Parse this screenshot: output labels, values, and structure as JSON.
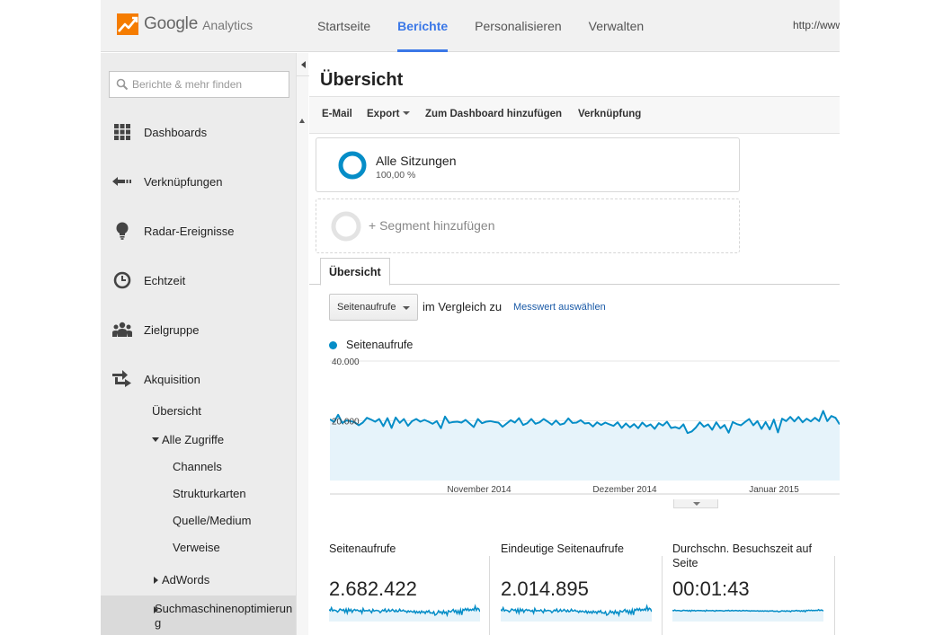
{
  "brand": {
    "google": "Google",
    "analytics": "Analytics"
  },
  "top_nav": [
    {
      "label": "Startseite",
      "active": false
    },
    {
      "label": "Berichte",
      "active": true
    },
    {
      "label": "Personalisieren",
      "active": false
    },
    {
      "label": "Verwalten",
      "active": false
    }
  ],
  "account_url": "http://www",
  "search": {
    "placeholder": "Berichte & mehr finden"
  },
  "sidebar": {
    "items": [
      {
        "label": "Dashboards",
        "icon": "dashboard-grid-icon"
      },
      {
        "label": "Verknüpfungen",
        "icon": "shortcut-arrow-icon"
      },
      {
        "label": "Radar-Ereignisse",
        "icon": "lightbulb-icon"
      },
      {
        "label": "Echtzeit",
        "icon": "clock-icon"
      },
      {
        "label": "Zielgruppe",
        "icon": "audience-people-icon"
      },
      {
        "label": "Akquisition",
        "icon": "acquisition-arrows-icon"
      }
    ],
    "acquisition_sub": {
      "overview": "Übersicht",
      "all_traffic": "Alle Zugriffe",
      "all_traffic_children": [
        "Channels",
        "Strukturkarten",
        "Quelle/Medium",
        "Verweise"
      ],
      "adwords": "AdWords",
      "seo": "Suchmaschinenoptimierung"
    }
  },
  "page": {
    "title": "Übersicht",
    "toolbar": {
      "email": "E-Mail",
      "export": "Export",
      "add_dashboard": "Zum Dashboard hinzufügen",
      "shortcut": "Verknüpfung"
    },
    "segment": {
      "name": "Alle Sitzungen",
      "percent": "100,00 %",
      "add_label": "+ Segment hinzufügen"
    },
    "tab": "Übersicht",
    "metric_select": "Seitenaufrufe",
    "compare_text": "im Vergleich zu",
    "choose_metric": "Messwert auswählen"
  },
  "colors": {
    "accent": "#3b78e7",
    "series": "#058dc7",
    "area": "#e6f3fa",
    "logo_orange": "#f57c00"
  },
  "chart_data": {
    "type": "area",
    "series": [
      {
        "name": "Seitenaufrufe",
        "values": [
          20500,
          19600,
          22000,
          19300,
          20100,
          19900,
          19500,
          18500,
          19400,
          21000,
          20400,
          19700,
          20600,
          18200,
          20900,
          17600,
          21100,
          19300,
          20600,
          18300,
          19900,
          20600,
          19700,
          20300,
          19700,
          19000,
          19900,
          17500,
          21400,
          19300,
          19600,
          19700,
          19400,
          20300,
          19100,
          17900,
          20600,
          19200,
          19700,
          19900,
          19600,
          19400,
          18000,
          19100,
          20200,
          19400,
          20900,
          18600,
          19200,
          20600,
          19000,
          19500,
          20600,
          19700,
          18700,
          20100,
          18700,
          19100,
          20800,
          19300,
          19400,
          20200,
          19100,
          19300,
          18100,
          19500,
          18600,
          19400,
          18800,
          18300,
          19500,
          17600,
          19100,
          17800,
          18900,
          17500,
          19400,
          18100,
          18800,
          17300,
          19200,
          18400,
          19700,
          17600,
          17900,
          17400,
          18800,
          15900,
          16400,
          17700,
          19500,
          18000,
          18800,
          17000,
          19500,
          17500,
          18600,
          16000,
          19600,
          18900,
          18500,
          19600,
          20600,
          18500,
          19900,
          17300,
          19600,
          17100,
          20400,
          16100,
          20700,
          19900,
          21300,
          19800,
          21300,
          19500,
          20700,
          19800,
          21000,
          19900,
          23300,
          19900,
          21600,
          21000,
          18800
        ]
      }
    ],
    "x_tick_labels": [
      "November 2014",
      "Dezember 2014",
      "Januar 2015"
    ],
    "y_tick_labels": [
      "40.000",
      "20.000"
    ],
    "ylim": [
      0,
      40000
    ],
    "grid": true
  },
  "scorecards": [
    {
      "title": "Seitenaufrufe",
      "value": "2.682.422"
    },
    {
      "title": "Eindeutige Seitenaufrufe",
      "value": "2.014.895"
    },
    {
      "title": "Durchschn. Besuchszeit auf Seite",
      "value": "00:01:43"
    }
  ]
}
